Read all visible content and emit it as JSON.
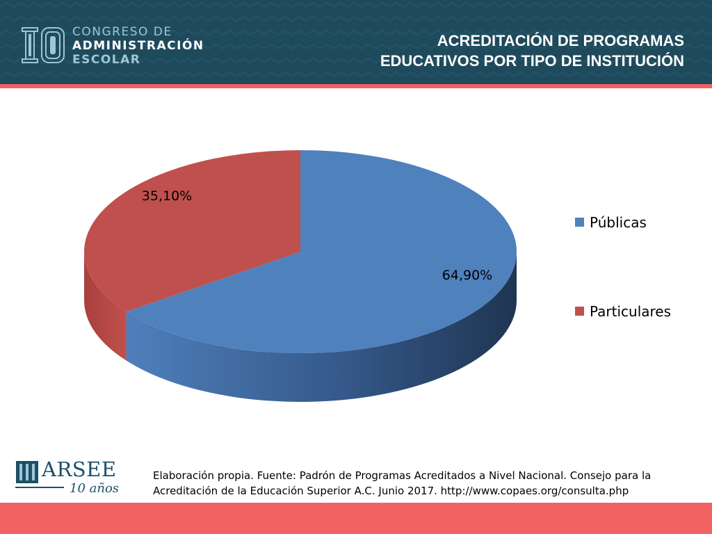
{
  "header": {
    "logo_number": "10",
    "logo_line1": "CONGRESO DE",
    "logo_line2": "ADMINISTRACIÓN",
    "logo_line3": "ESCOLAR",
    "title_line1": "ACREDITACIÓN DE PROGRAMAS",
    "title_line2": "EDUCATIVOS  POR TIPO DE INSTITUCIÓN"
  },
  "colors": {
    "header_bg": "#1f4a5b",
    "accent": "#f26262",
    "publicas": "#4f81bd",
    "particulares": "#c0504d"
  },
  "chart_data": {
    "type": "pie",
    "title": "",
    "categories": [
      "Públicas",
      "Particulares"
    ],
    "values": [
      64.9,
      35.1
    ],
    "labels": [
      "64,90%",
      "35,10%"
    ],
    "legend_position": "right",
    "style": "3d"
  },
  "footer": {
    "logo_name": "ARSEE",
    "logo_years": "10 años",
    "source_line1": "Elaboración propia. Fuente: Padrón de Programas Acreditados a Nivel Nacional. Consejo para la",
    "source_line2": "Acreditación de la Educación Superior A.C. Junio 2017. http://www.copaes.org/consulta.php"
  }
}
